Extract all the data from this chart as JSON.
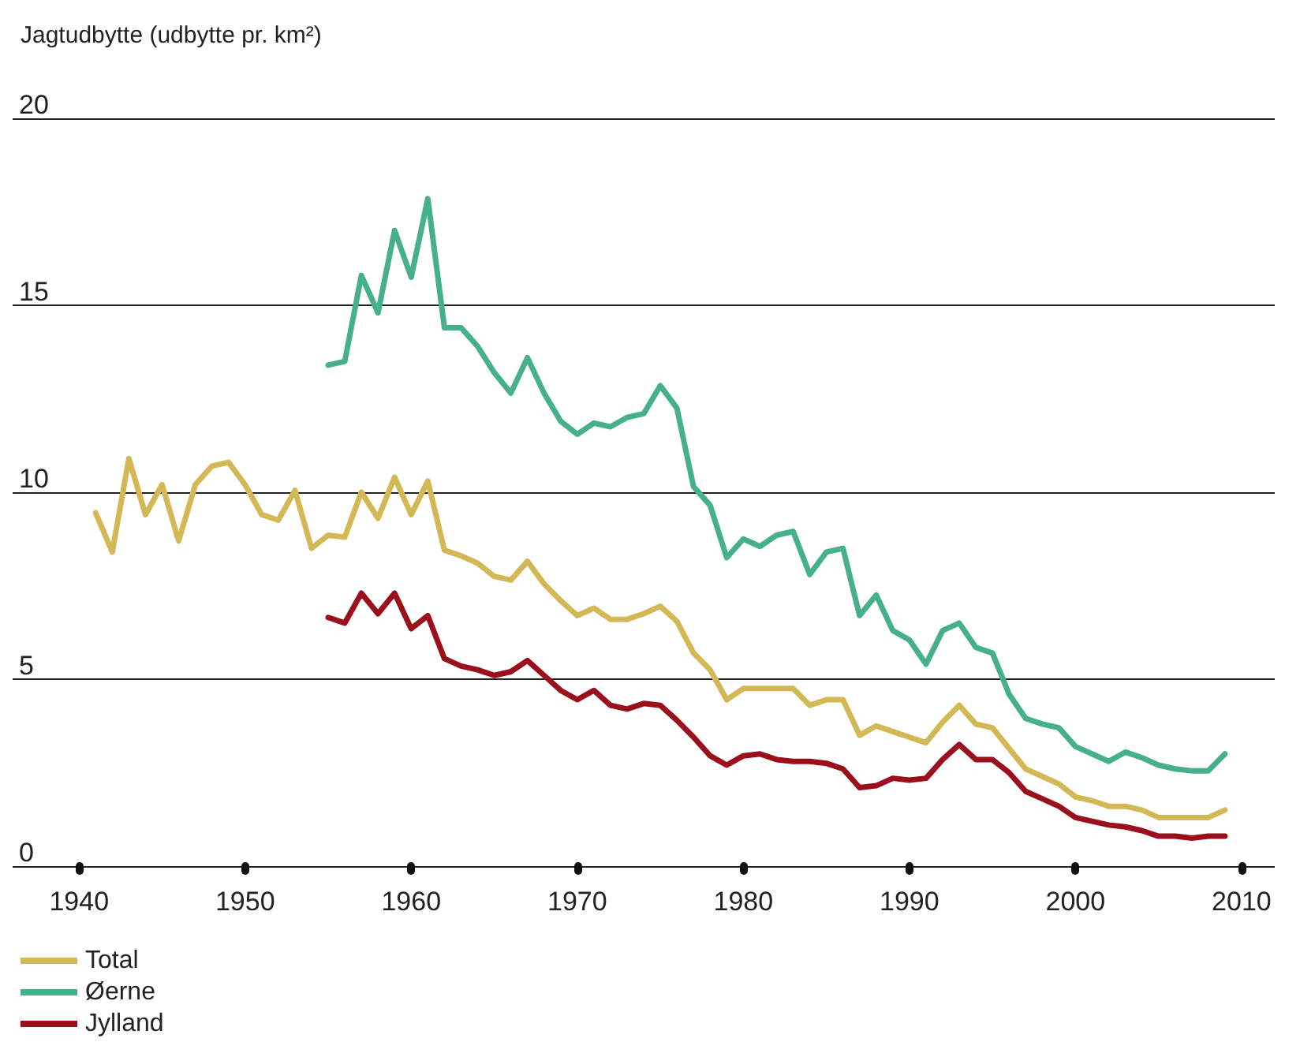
{
  "chart_data": {
    "type": "line",
    "ylabel": "Jagtudbytte (udbytte pr. km²)",
    "xlim": [
      1936,
      2012
    ],
    "xticks": [
      1940,
      1950,
      1960,
      1970,
      1980,
      1990,
      2000,
      2010
    ],
    "ylim": [
      0,
      20
    ],
    "yticks": [
      0,
      5,
      10,
      15,
      20
    ],
    "grid": "y",
    "legend": "bottom left",
    "marker": "none",
    "line_style": "solid",
    "x": [
      1941,
      1942,
      1943,
      1944,
      1945,
      1946,
      1947,
      1948,
      1949,
      1950,
      1951,
      1952,
      1953,
      1954,
      1955,
      1956,
      1957,
      1958,
      1959,
      1960,
      1961,
      1962,
      1963,
      1964,
      1965,
      1966,
      1967,
      1968,
      1969,
      1970,
      1971,
      1972,
      1973,
      1974,
      1975,
      1976,
      1977,
      1978,
      1979,
      1980,
      1981,
      1982,
      1983,
      1984,
      1985,
      1986,
      1987,
      1988,
      1989,
      1990,
      1991,
      1992,
      1993,
      1994,
      1995,
      1996,
      1997,
      1998,
      1999,
      2000,
      2001,
      2002,
      2003,
      2004,
      2005,
      2006,
      2007,
      2008,
      2009
    ],
    "series": [
      {
        "name": "Total",
        "color": "#d4b855",
        "values": [
          9.45,
          8.4,
          10.9,
          9.4,
          10.2,
          8.7,
          10.2,
          10.7,
          10.8,
          10.2,
          9.4,
          9.25,
          10.05,
          8.5,
          8.85,
          8.8,
          10.0,
          9.3,
          10.4,
          9.4,
          10.3,
          8.45,
          8.3,
          8.1,
          7.75,
          7.65,
          8.15,
          7.55,
          7.1,
          6.7,
          6.9,
          6.6,
          6.6,
          6.75,
          6.95,
          6.55,
          5.7,
          5.25,
          4.45,
          4.75,
          4.75,
          4.75,
          4.75,
          4.3,
          4.45,
          4.45,
          3.5,
          3.75,
          3.6,
          3.45,
          3.3,
          3.85,
          4.3,
          3.8,
          3.7,
          3.15,
          2.6,
          2.4,
          2.2,
          1.85,
          1.75,
          1.6,
          1.6,
          1.5,
          1.3,
          1.3,
          1.3,
          1.3,
          1.5
        ]
      },
      {
        "name": "Øerne",
        "color": "#45b08a",
        "values": [
          null,
          null,
          null,
          null,
          null,
          null,
          null,
          null,
          null,
          null,
          null,
          null,
          null,
          null,
          13.4,
          13.5,
          15.8,
          14.8,
          17.0,
          15.75,
          17.85,
          14.4,
          14.4,
          13.9,
          13.2,
          12.65,
          13.6,
          12.65,
          11.9,
          11.55,
          11.85,
          11.75,
          12.0,
          12.1,
          12.85,
          12.25,
          10.15,
          9.65,
          8.25,
          8.75,
          8.55,
          8.85,
          8.95,
          7.8,
          8.4,
          8.5,
          6.7,
          7.25,
          6.3,
          6.05,
          5.4,
          6.3,
          6.5,
          5.85,
          5.7,
          4.6,
          3.95,
          3.8,
          3.7,
          3.2,
          3.0,
          2.8,
          3.05,
          2.9,
          2.7,
          2.6,
          2.55,
          2.55,
          3.0
        ]
      },
      {
        "name": "Jylland",
        "color": "#9b0e1b",
        "values": [
          null,
          null,
          null,
          null,
          null,
          null,
          null,
          null,
          null,
          null,
          null,
          null,
          null,
          null,
          6.65,
          6.5,
          7.3,
          6.75,
          7.3,
          6.35,
          6.7,
          5.55,
          5.35,
          5.25,
          5.1,
          5.2,
          5.5,
          5.1,
          4.7,
          4.45,
          4.7,
          4.3,
          4.2,
          4.35,
          4.3,
          3.9,
          3.45,
          2.95,
          2.7,
          2.95,
          3.0,
          2.85,
          2.8,
          2.8,
          2.75,
          2.6,
          2.1,
          2.15,
          2.35,
          2.3,
          2.35,
          2.85,
          3.25,
          2.85,
          2.85,
          2.5,
          2.0,
          1.8,
          1.6,
          1.3,
          1.2,
          1.1,
          1.05,
          0.95,
          0.8,
          0.8,
          0.75,
          0.8,
          0.8
        ]
      }
    ]
  }
}
